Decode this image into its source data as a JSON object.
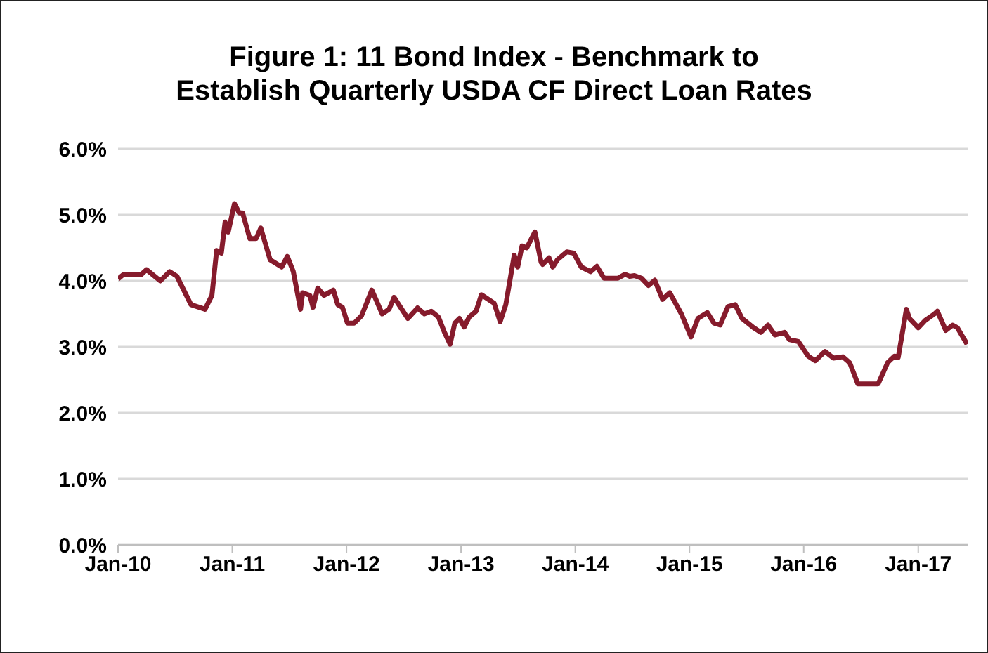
{
  "chart_data": {
    "type": "line",
    "title": "Figure 1: 11 Bond Index - Benchmark to\nEstablish Quarterly USDA CF Direct Loan Rates",
    "x": [
      "2010-01-01",
      "2010-01-19",
      "2010-03-17",
      "2010-04-02",
      "2010-05-16",
      "2010-06-15",
      "2010-07-08",
      "2010-08-22",
      "2010-10-06",
      "2010-10-28",
      "2010-11-12",
      "2010-11-27",
      "2010-12-09",
      "2010-12-19",
      "2011-01-08",
      "2011-01-23",
      "2011-02-03",
      "2011-02-26",
      "2011-03-18",
      "2011-04-02",
      "2011-05-02",
      "2011-06-08",
      "2011-06-26",
      "2011-07-15",
      "2011-08-07",
      "2011-08-14",
      "2011-09-06",
      "2011-09-16",
      "2011-10-01",
      "2011-10-21",
      "2011-11-20",
      "2011-12-04",
      "2011-12-19",
      "2012-01-04",
      "2012-01-26",
      "2012-02-18",
      "2012-03-22",
      "2012-04-24",
      "2012-05-16",
      "2012-06-01",
      "2012-07-15",
      "2012-08-15",
      "2012-09-06",
      "2012-09-28",
      "2012-10-21",
      "2012-11-09",
      "2012-11-27",
      "2012-12-12",
      "2012-12-27",
      "2013-01-11",
      "2013-01-27",
      "2013-02-18",
      "2013-03-07",
      "2013-04-17",
      "2013-05-06",
      "2013-05-24",
      "2013-06-20",
      "2013-07-01",
      "2013-07-15",
      "2013-07-30",
      "2013-08-25",
      "2013-09-14",
      "2013-09-19",
      "2013-10-09",
      "2013-10-21",
      "2013-11-05",
      "2013-12-05",
      "2013-12-27",
      "2014-01-20",
      "2014-02-19",
      "2014-03-11",
      "2014-04-03",
      "2014-05-17",
      "2014-06-09",
      "2014-06-24",
      "2014-07-09",
      "2014-08-01",
      "2014-08-23",
      "2014-09-12",
      "2014-10-07",
      "2014-10-30",
      "2014-12-06",
      "2015-01-06",
      "2015-01-28",
      "2015-02-27",
      "2015-03-20",
      "2015-04-09",
      "2015-05-04",
      "2015-05-27",
      "2015-06-18",
      "2015-07-25",
      "2015-08-17",
      "2015-09-09",
      "2015-10-01",
      "2015-11-01",
      "2015-11-16",
      "2015-12-15",
      "2016-01-15",
      "2016-02-07",
      "2016-03-09",
      "2016-04-05",
      "2016-05-05",
      "2016-05-27",
      "2016-06-22",
      "2016-07-11",
      "2016-08-26",
      "2016-09-25",
      "2016-10-17",
      "2016-10-29",
      "2016-11-24",
      "2016-12-04",
      "2017-01-01",
      "2017-01-23",
      "2017-02-22",
      "2017-03-03",
      "2017-03-30",
      "2017-04-21",
      "2017-05-06",
      "2017-06-06"
    ],
    "series": [
      {
        "color": "#861b2c",
        "values": [
          4.03,
          4.1,
          4.1,
          4.17,
          4.0,
          4.14,
          4.07,
          3.64,
          3.57,
          3.78,
          4.46,
          4.42,
          4.89,
          4.74,
          5.17,
          5.03,
          5.03,
          4.64,
          4.64,
          4.8,
          4.32,
          4.21,
          4.37,
          4.14,
          3.57,
          3.82,
          3.78,
          3.6,
          3.89,
          3.78,
          3.86,
          3.64,
          3.6,
          3.36,
          3.36,
          3.47,
          3.86,
          3.5,
          3.57,
          3.75,
          3.43,
          3.59,
          3.5,
          3.54,
          3.45,
          3.22,
          3.04,
          3.36,
          3.43,
          3.3,
          3.45,
          3.54,
          3.79,
          3.66,
          3.38,
          3.64,
          4.39,
          4.21,
          4.53,
          4.5,
          4.74,
          4.28,
          4.25,
          4.35,
          4.21,
          4.32,
          4.44,
          4.42,
          4.21,
          4.14,
          4.22,
          4.04,
          4.04,
          4.1,
          4.07,
          4.08,
          4.04,
          3.93,
          4.01,
          3.72,
          3.82,
          3.5,
          3.15,
          3.43,
          3.52,
          3.36,
          3.33,
          3.61,
          3.64,
          3.43,
          3.29,
          3.22,
          3.33,
          3.18,
          3.22,
          3.11,
          3.08,
          2.86,
          2.79,
          2.93,
          2.83,
          2.85,
          2.76,
          2.44,
          2.44,
          2.44,
          2.76,
          2.86,
          2.84,
          3.57,
          3.43,
          3.29,
          3.4,
          3.5,
          3.54,
          3.25,
          3.33,
          3.29,
          3.04
        ]
      }
    ],
    "xlim": [
      "2010-01-01",
      "2017-06-10"
    ],
    "xticks": [
      {
        "value": "2010-01-01",
        "label": "Jan-10"
      },
      {
        "value": "2011-01-01",
        "label": "Jan-11"
      },
      {
        "value": "2012-01-01",
        "label": "Jan-12"
      },
      {
        "value": "2013-01-01",
        "label": "Jan-13"
      },
      {
        "value": "2014-01-01",
        "label": "Jan-14"
      },
      {
        "value": "2015-01-01",
        "label": "Jan-15"
      },
      {
        "value": "2016-01-01",
        "label": "Jan-16"
      },
      {
        "value": "2017-01-01",
        "label": "Jan-17"
      }
    ],
    "ylim": [
      0,
      6
    ],
    "yticks": [
      {
        "value": 0,
        "label": "0.0%"
      },
      {
        "value": 1,
        "label": "1.0%"
      },
      {
        "value": 2,
        "label": "2.0%"
      },
      {
        "value": 3,
        "label": "3.0%"
      },
      {
        "value": 4,
        "label": "4.0%"
      },
      {
        "value": 5,
        "label": "5.0%"
      },
      {
        "value": 6,
        "label": "6.0%"
      }
    ],
    "grid": "y",
    "marker": "none",
    "line_style": "solid"
  }
}
